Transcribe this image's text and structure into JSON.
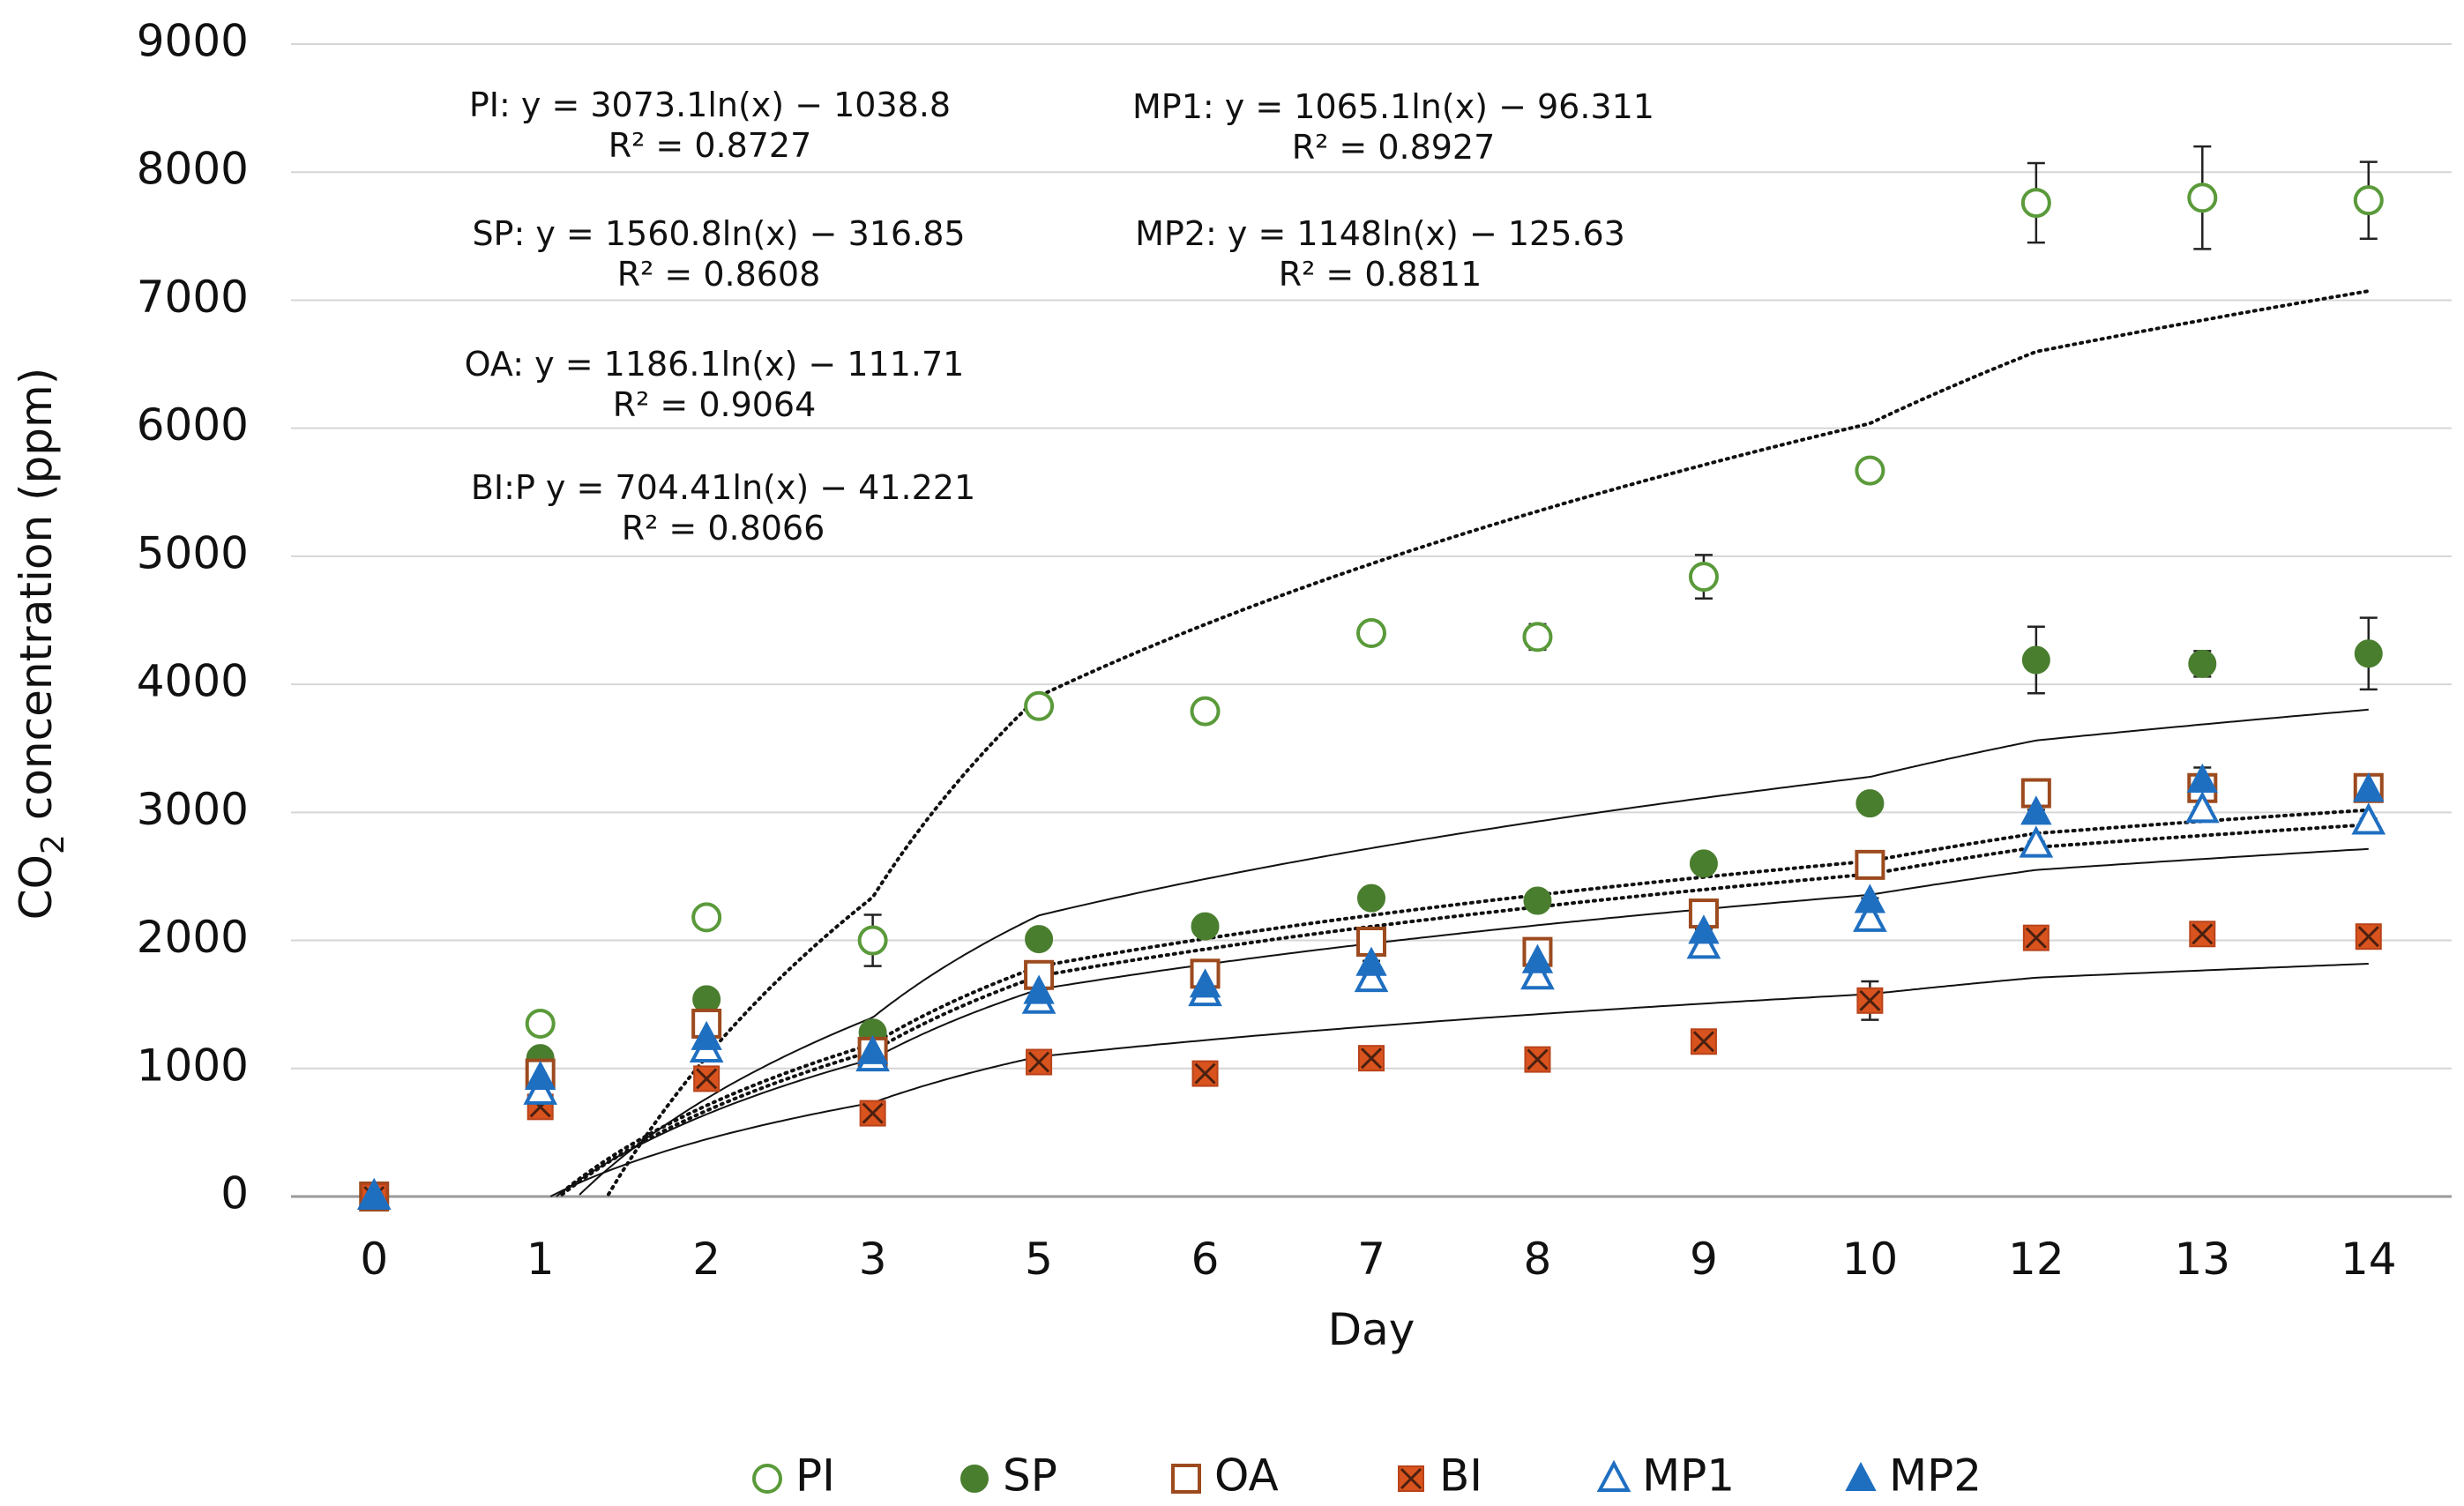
{
  "chart_data": {
    "type": "scatter",
    "title": "",
    "xlabel": "Day",
    "ylabel": "CO2 concentration (ppm)",
    "ylabel_prefix": "CO",
    "ylabel_subscript": "2",
    "ylabel_suffix": " concentration (ppm)",
    "categories": [
      "0",
      "1",
      "2",
      "3",
      "5",
      "6",
      "7",
      "8",
      "9",
      "10",
      "12",
      "13",
      "14"
    ],
    "days": [
      0,
      1,
      2,
      3,
      5,
      6,
      7,
      8,
      9,
      10,
      12,
      13,
      14
    ],
    "ylim": [
      0,
      9000
    ],
    "yticks": [
      "0",
      "1000",
      "2000",
      "3000",
      "4000",
      "5000",
      "6000",
      "7000",
      "8000",
      "9000"
    ],
    "grid": true,
    "legend_position": "bottom",
    "series": [
      {
        "name": "PI",
        "marker": "circle-open",
        "color": "#5a9a3a",
        "values": [
          0,
          1350,
          2180,
          2000,
          3830,
          3790,
          4400,
          4370,
          4840,
          5670,
          7760,
          7800,
          7780
        ],
        "errors": [
          0,
          40,
          40,
          200,
          40,
          40,
          40,
          100,
          170,
          50,
          310,
          400,
          300
        ]
      },
      {
        "name": "SP",
        "marker": "circle-filled",
        "color": "#4a7e2f",
        "values": [
          0,
          1080,
          1540,
          1280,
          2010,
          2110,
          2330,
          2310,
          2600,
          3070,
          4190,
          4160,
          4240
        ],
        "errors": [
          0,
          30,
          30,
          30,
          30,
          60,
          30,
          30,
          30,
          30,
          260,
          100,
          280
        ]
      },
      {
        "name": "OA",
        "marker": "square-open",
        "color": "#9c4a1e",
        "values": [
          0,
          960,
          1350,
          1130,
          1730,
          1740,
          1990,
          1910,
          2210,
          2590,
          3150,
          3190,
          3190
        ],
        "errors": [
          0,
          30,
          30,
          30,
          30,
          30,
          30,
          30,
          30,
          30,
          100,
          100,
          60
        ]
      },
      {
        "name": "BI",
        "marker": "x-square",
        "color": "#d9531e",
        "values": [
          0,
          700,
          920,
          650,
          1050,
          960,
          1080,
          1070,
          1210,
          1530,
          2020,
          2050,
          2030
        ],
        "errors": [
          0,
          30,
          30,
          30,
          30,
          30,
          30,
          30,
          30,
          150,
          30,
          30,
          30
        ]
      },
      {
        "name": "MP1",
        "marker": "triangle-open",
        "color": "#1f6fc1",
        "values": [
          0,
          820,
          1150,
          1080,
          1530,
          1590,
          1700,
          1720,
          1960,
          2170,
          2750,
          3020,
          2930
        ],
        "errors": [
          0,
          20,
          20,
          20,
          20,
          20,
          20,
          20,
          20,
          20,
          20,
          20,
          20
        ]
      },
      {
        "name": "MP2",
        "marker": "triangle-filled",
        "color": "#1f6fc1",
        "values": [
          0,
          930,
          1240,
          1130,
          1600,
          1650,
          1820,
          1840,
          2070,
          2310,
          3000,
          3250,
          3180
        ],
        "errors": [
          0,
          20,
          20,
          20,
          20,
          20,
          20,
          20,
          20,
          20,
          20,
          100,
          20
        ]
      }
    ],
    "trendlines": [
      {
        "name": "PI",
        "a": 3073.1,
        "b": -1038.8,
        "style": "dotted"
      },
      {
        "name": "SP",
        "a": 1560.8,
        "b": -316.85,
        "style": "solid"
      },
      {
        "name": "OA",
        "a": 1186.1,
        "b": -111.71,
        "style": "dotted"
      },
      {
        "name": "BI",
        "a": 704.41,
        "b": -41.221,
        "style": "solid"
      },
      {
        "name": "MP1",
        "a": 1065.1,
        "b": -96.311,
        "style": "solid"
      },
      {
        "name": "MP2",
        "a": 1148,
        "b": -125.63,
        "style": "dotted"
      }
    ],
    "annotations": [
      {
        "eq": "PI: y = 3073.1ln(x) − 1038.8",
        "r2": "R² = 0.8727"
      },
      {
        "eq": "SP: y = 1560.8ln(x) − 316.85",
        "r2": "R² = 0.8608"
      },
      {
        "eq": "OA: y = 1186.1ln(x) − 111.71",
        "r2": "R² = 0.9064"
      },
      {
        "eq": "BI:P y = 704.41ln(x) − 41.221",
        "r2": "R² = 0.8066"
      },
      {
        "eq": "MP1: y = 1065.1ln(x) − 96.311",
        "r2": "R² = 0.8927"
      },
      {
        "eq": "MP2: y = 1148ln(x) − 125.63",
        "r2": "R² = 0.8811"
      }
    ]
  }
}
